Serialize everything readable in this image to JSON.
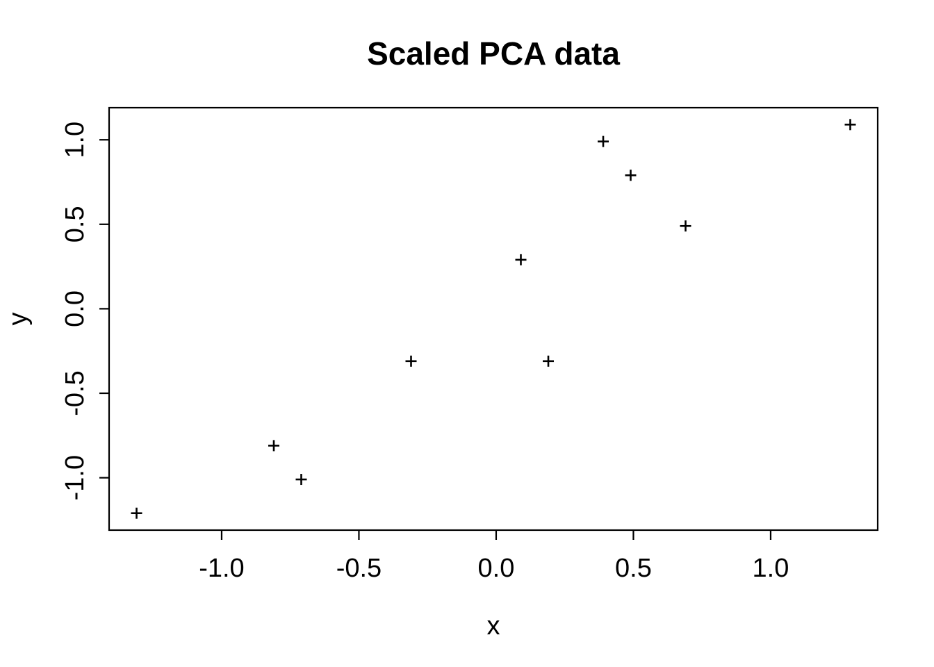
{
  "chart_data": {
    "type": "scatter",
    "title": "Scaled PCA data",
    "xlabel": "x",
    "ylabel": "y",
    "marker": "+",
    "marker_color": "#000000",
    "background_color": "#ffffff",
    "grid": false,
    "legend": null,
    "xlim": [
      -1.41,
      1.39
    ],
    "ylim": [
      -1.31,
      1.19
    ],
    "x_ticks": {
      "values": [
        -1.0,
        -0.5,
        0.0,
        0.5,
        1.0
      ],
      "labels": [
        "-1.0",
        "-0.5",
        "0.0",
        "0.5",
        "1.0"
      ]
    },
    "y_ticks": {
      "values": [
        -1.0,
        -0.5,
        0.0,
        0.5,
        1.0
      ],
      "labels": [
        "-1.0",
        "-0.5",
        "0.0",
        "0.5",
        "1.0"
      ]
    },
    "x": [
      0.69,
      -1.31,
      0.39,
      0.09,
      1.29,
      0.49,
      0.19,
      -0.81,
      -0.31,
      -0.71
    ],
    "y": [
      0.49,
      -1.21,
      0.99,
      0.29,
      1.09,
      0.79,
      -0.31,
      -0.81,
      -0.31,
      -1.01
    ]
  }
}
